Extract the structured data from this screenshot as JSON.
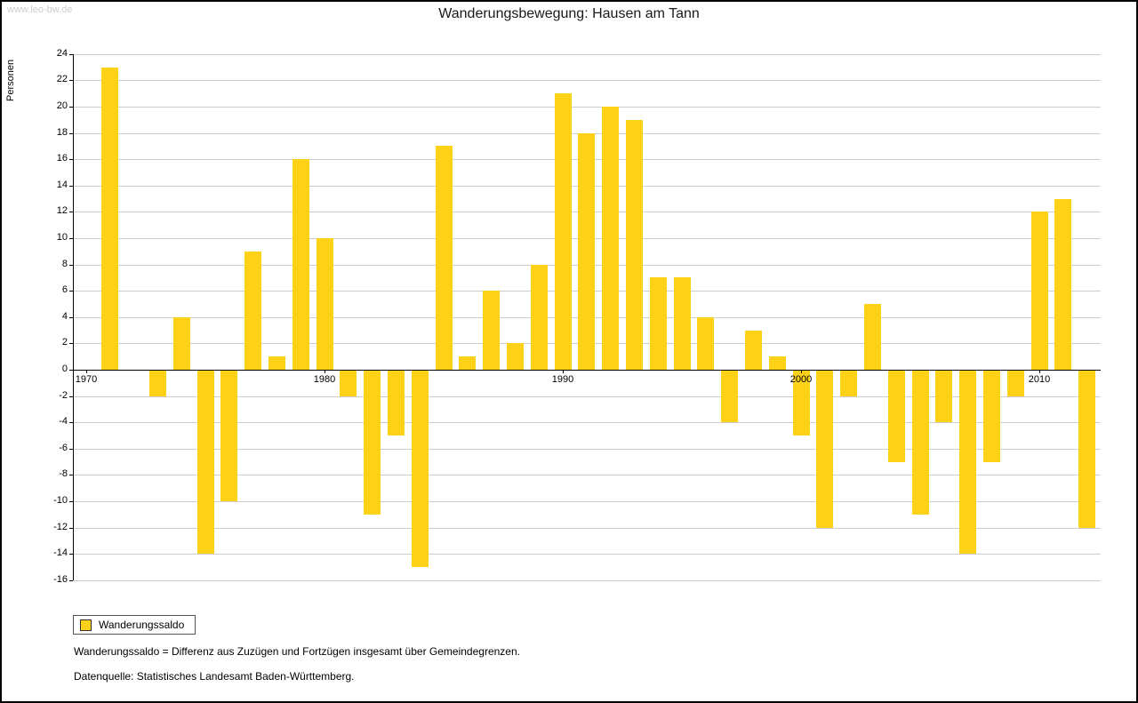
{
  "page": {
    "watermark": "www.leo-bw.de",
    "title": "Wanderungsbewegung: Hausen am Tann",
    "footnote1": "Wanderungssaldo = Differenz aus Zuzügen und Fortzügen insgesamt über Gemeindegrenzen.",
    "footnote2": "Datenquelle: Statistisches Landesamt Baden-Württemberg."
  },
  "legend": {
    "label": "Wanderungssaldo"
  },
  "chart_data": {
    "type": "bar",
    "title": "Wanderungsbewegung: Hausen am Tann",
    "xlabel": "",
    "ylabel": "Personen",
    "ylim": [
      -16,
      24
    ],
    "ytick_step": 2,
    "xticks": [
      1970,
      1980,
      1990,
      2000,
      2010
    ],
    "grid": true,
    "legend_position": "bottom-left",
    "bar_color": "#FCD116",
    "gridline_color": "#cccccc",
    "axis_color": "#000000",
    "series": [
      {
        "name": "Wanderungssaldo",
        "points": [
          {
            "year": 1971,
            "value": 23
          },
          {
            "year": 1973,
            "value": -2
          },
          {
            "year": 1974,
            "value": 4
          },
          {
            "year": 1975,
            "value": -14
          },
          {
            "year": 1976,
            "value": -10
          },
          {
            "year": 1977,
            "value": 9
          },
          {
            "year": 1978,
            "value": 1
          },
          {
            "year": 1979,
            "value": 16
          },
          {
            "year": 1980,
            "value": 10
          },
          {
            "year": 1981,
            "value": -2
          },
          {
            "year": 1982,
            "value": -11
          },
          {
            "year": 1983,
            "value": -5
          },
          {
            "year": 1984,
            "value": -15
          },
          {
            "year": 1985,
            "value": 17
          },
          {
            "year": 1986,
            "value": 1
          },
          {
            "year": 1987,
            "value": 6
          },
          {
            "year": 1988,
            "value": 2
          },
          {
            "year": 1989,
            "value": 8
          },
          {
            "year": 1990,
            "value": 21
          },
          {
            "year": 1991,
            "value": 18
          },
          {
            "year": 1992,
            "value": 20
          },
          {
            "year": 1993,
            "value": 19
          },
          {
            "year": 1994,
            "value": 7
          },
          {
            "year": 1995,
            "value": 7
          },
          {
            "year": 1996,
            "value": 4
          },
          {
            "year": 1997,
            "value": -4
          },
          {
            "year": 1998,
            "value": 3
          },
          {
            "year": 1999,
            "value": 1
          },
          {
            "year": 2000,
            "value": -5
          },
          {
            "year": 2001,
            "value": -12
          },
          {
            "year": 2002,
            "value": -2
          },
          {
            "year": 2003,
            "value": 5
          },
          {
            "year": 2004,
            "value": -7
          },
          {
            "year": 2005,
            "value": -11
          },
          {
            "year": 2006,
            "value": -4
          },
          {
            "year": 2007,
            "value": -14
          },
          {
            "year": 2008,
            "value": -7
          },
          {
            "year": 2009,
            "value": -2
          },
          {
            "year": 2010,
            "value": 12
          },
          {
            "year": 2011,
            "value": 13
          },
          {
            "year": 2012,
            "value": -12
          }
        ]
      }
    ]
  }
}
